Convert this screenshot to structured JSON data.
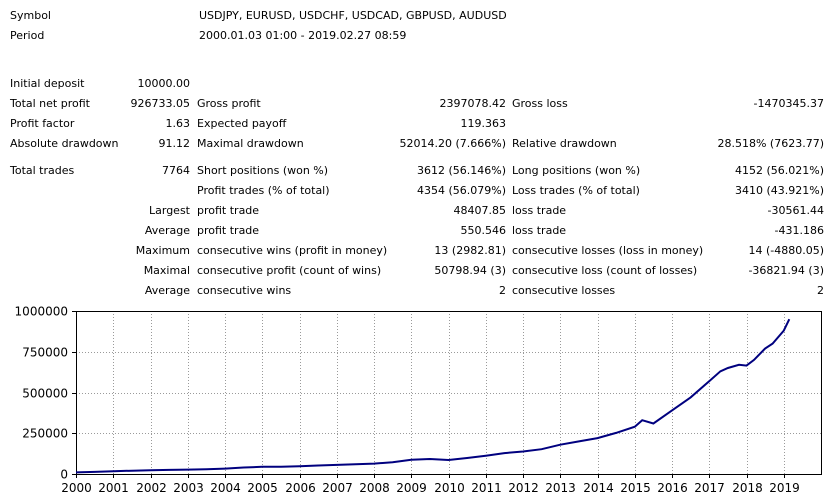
{
  "report": {
    "symbol_label": "Symbol",
    "symbol_value": "USDJPY, EURUSD, USDCHF, USDCAD, GBPUSD, AUDUSD",
    "period_label": "Period",
    "period_value": "2000.01.03 01:00 - 2019.02.27 08:59",
    "initial_deposit_label": "Initial deposit",
    "initial_deposit_value": "10000.00",
    "total_net_profit_label": "Total net profit",
    "total_net_profit_value": "926733.05",
    "gross_profit_label": "Gross profit",
    "gross_profit_value": "2397078.42",
    "gross_loss_label": "Gross loss",
    "gross_loss_value": "-1470345.37",
    "profit_factor_label": "Profit factor",
    "profit_factor_value": "1.63",
    "expected_payoff_label": "Expected payoff",
    "expected_payoff_value": "119.363",
    "absolute_drawdown_label": "Absolute drawdown",
    "absolute_drawdown_value": "91.12",
    "maximal_drawdown_label": "Maximal drawdown",
    "maximal_drawdown_value": "52014.20 (7.666%)",
    "relative_drawdown_label": "Relative drawdown",
    "relative_drawdown_value": "28.518% (7623.77)",
    "total_trades_label": "Total trades",
    "total_trades_value": "7764",
    "short_positions_label": "Short positions (won %)",
    "short_positions_value": "3612 (56.146%)",
    "long_positions_label": "Long positions (won %)",
    "long_positions_value": "4152 (56.021%)",
    "profit_trades_label": "Profit trades (% of total)",
    "profit_trades_value": "4354 (56.079%)",
    "loss_trades_label": "Loss trades (% of total)",
    "loss_trades_value": "3410 (43.921%)",
    "largest_label": "Largest",
    "largest_profit_trade_label": "profit trade",
    "largest_profit_trade_value": "48407.85",
    "largest_loss_trade_label": "loss trade",
    "largest_loss_trade_value": "-30561.44",
    "average_label": "Average",
    "average_profit_trade_label": "profit trade",
    "average_profit_trade_value": "550.546",
    "average_loss_trade_label": "loss trade",
    "average_loss_trade_value": "-431.186",
    "maximum_label": "Maximum",
    "max_consec_wins_label": "consecutive wins (profit in money)",
    "max_consec_wins_value": "13 (2982.81)",
    "max_consec_losses_label": "consecutive losses (loss in money)",
    "max_consec_losses_value": "14 (-4880.05)",
    "maximal_label": "Maximal",
    "maximal_consec_profit_label": "consecutive profit (count of wins)",
    "maximal_consec_profit_value": "50798.94 (3)",
    "maximal_consec_loss_label": "consecutive loss (count of losses)",
    "maximal_consec_loss_value": "-36821.94 (3)",
    "average2_label": "Average",
    "avg_consec_wins_label": "consecutive wins",
    "avg_consec_wins_value": "2",
    "avg_consec_losses_label": "consecutive losses",
    "avg_consec_losses_value": "2"
  },
  "chart_data": {
    "type": "line",
    "title": "",
    "xlabel": "",
    "ylabel": "",
    "x_ticks": [
      "2000",
      "2001",
      "2002",
      "2003",
      "2004",
      "2005",
      "2006",
      "2007",
      "2008",
      "2009",
      "2010",
      "2011",
      "2012",
      "2013",
      "2014",
      "2015",
      "2016",
      "2017",
      "2018",
      "2019"
    ],
    "y_ticks": [
      "0",
      "250000",
      "500000",
      "750000",
      "1000000"
    ],
    "xlim": [
      2000,
      2020
    ],
    "ylim": [
      0,
      1000000
    ],
    "grid": true,
    "line_color": "#00007f",
    "series": [
      {
        "x": [
          2000.0,
          2000.5,
          2001.0,
          2001.5,
          2002.0,
          2002.5,
          2003.0,
          2003.5,
          2004.0,
          2004.5,
          2005.0,
          2005.5,
          2006.0,
          2006.5,
          2007.0,
          2007.5,
          2008.0,
          2008.5,
          2009.0,
          2009.5,
          2010.0,
          2010.5,
          2011.0,
          2011.5,
          2012.0,
          2012.5,
          2013.0,
          2013.5,
          2014.0,
          2014.5,
          2015.0,
          2015.2,
          2015.5,
          2016.0,
          2016.5,
          2017.0,
          2017.3,
          2017.5,
          2017.8,
          2018.0,
          2018.2,
          2018.5,
          2018.7,
          2019.0,
          2019.15
        ],
        "y": [
          10000,
          13000,
          17000,
          20000,
          23000,
          25000,
          27000,
          29000,
          33000,
          40000,
          44000,
          45000,
          47000,
          52000,
          56000,
          60000,
          64000,
          72000,
          87000,
          92000,
          86000,
          98000,
          112000,
          128000,
          138000,
          152000,
          180000,
          200000,
          220000,
          252000,
          290000,
          330000,
          310000,
          390000,
          470000,
          570000,
          630000,
          650000,
          670000,
          665000,
          700000,
          770000,
          800000,
          880000,
          950000
        ]
      }
    ]
  }
}
